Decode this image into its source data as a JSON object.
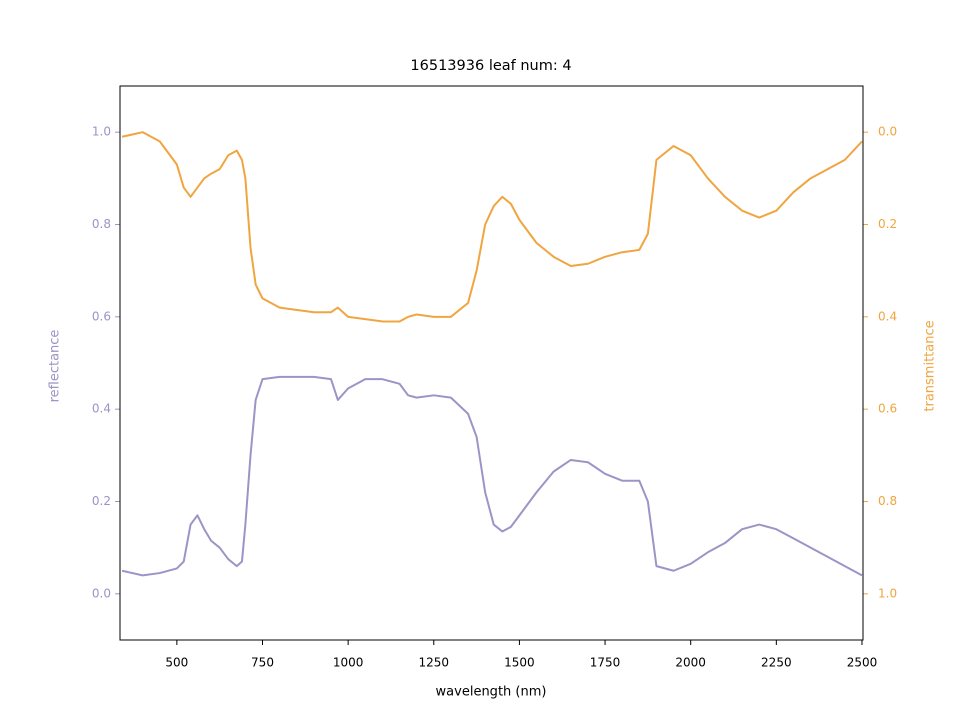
{
  "chart_data": {
    "type": "line",
    "title": "16513936 leaf num: 4",
    "xlabel": "wavelength (nm)",
    "ylabel": "reflectance",
    "y2label": "transmittance",
    "x": [
      340,
      400,
      450,
      500,
      520,
      540,
      560,
      580,
      600,
      625,
      650,
      675,
      690,
      700,
      715,
      730,
      750,
      800,
      900,
      950,
      970,
      1000,
      1050,
      1100,
      1150,
      1175,
      1200,
      1250,
      1300,
      1350,
      1375,
      1400,
      1425,
      1450,
      1475,
      1500,
      1550,
      1600,
      1650,
      1700,
      1750,
      1800,
      1850,
      1875,
      1900,
      1950,
      2000,
      2050,
      2100,
      2150,
      2200,
      2250,
      2300,
      2350,
      2400,
      2450,
      2500
    ],
    "series": [
      {
        "name": "reflectance",
        "color": "#9a95c6",
        "axis": "y",
        "values": [
          0.05,
          0.04,
          0.045,
          0.055,
          0.07,
          0.15,
          0.17,
          0.14,
          0.115,
          0.1,
          0.075,
          0.06,
          0.07,
          0.15,
          0.3,
          0.42,
          0.465,
          0.47,
          0.47,
          0.465,
          0.42,
          0.445,
          0.465,
          0.465,
          0.455,
          0.43,
          0.425,
          0.43,
          0.425,
          0.39,
          0.34,
          0.22,
          0.15,
          0.135,
          0.145,
          0.17,
          0.22,
          0.265,
          0.29,
          0.285,
          0.26,
          0.245,
          0.245,
          0.2,
          0.06,
          0.05,
          0.065,
          0.09,
          0.11,
          0.14,
          0.15,
          0.14,
          0.12,
          0.1,
          0.08,
          0.06,
          0.04
        ]
      },
      {
        "name": "transmittance",
        "color": "#f0a540",
        "axis": "y2",
        "values": [
          0.01,
          0,
          0.02,
          0.07,
          0.12,
          0.14,
          0.12,
          0.1,
          0.09,
          0.08,
          0.05,
          0.04,
          0.06,
          0.1,
          0.25,
          0.33,
          0.36,
          0.38,
          0.39,
          0.39,
          0.38,
          0.4,
          0.405,
          0.41,
          0.41,
          0.4,
          0.395,
          0.4,
          0.4,
          0.37,
          0.3,
          0.2,
          0.16,
          0.14,
          0.155,
          0.19,
          0.24,
          0.27,
          0.29,
          0.285,
          0.27,
          0.26,
          0.255,
          0.22,
          0.06,
          0.03,
          0.05,
          0.1,
          0.14,
          0.17,
          0.185,
          0.17,
          0.13,
          0.1,
          0.08,
          0.06,
          0.02
        ]
      }
    ],
    "xlim": [
      334,
      2503
    ],
    "xticks": [
      500,
      750,
      1000,
      1250,
      1500,
      1750,
      2000,
      2250,
      2500
    ],
    "ylim": [
      -0.1,
      1.1
    ],
    "yticks": [
      {
        "value": 0,
        "label": "0.0"
      },
      0.2,
      0.4,
      0.6,
      0.8,
      {
        "value": 1,
        "label": "1.0"
      }
    ],
    "y2lim": [
      1.1,
      -0.1
    ],
    "y2ticks": [
      {
        "value": 0,
        "label": "0.0"
      },
      0.2,
      0.4,
      0.6,
      0.8,
      {
        "value": 1,
        "label": "1.0"
      }
    ]
  }
}
